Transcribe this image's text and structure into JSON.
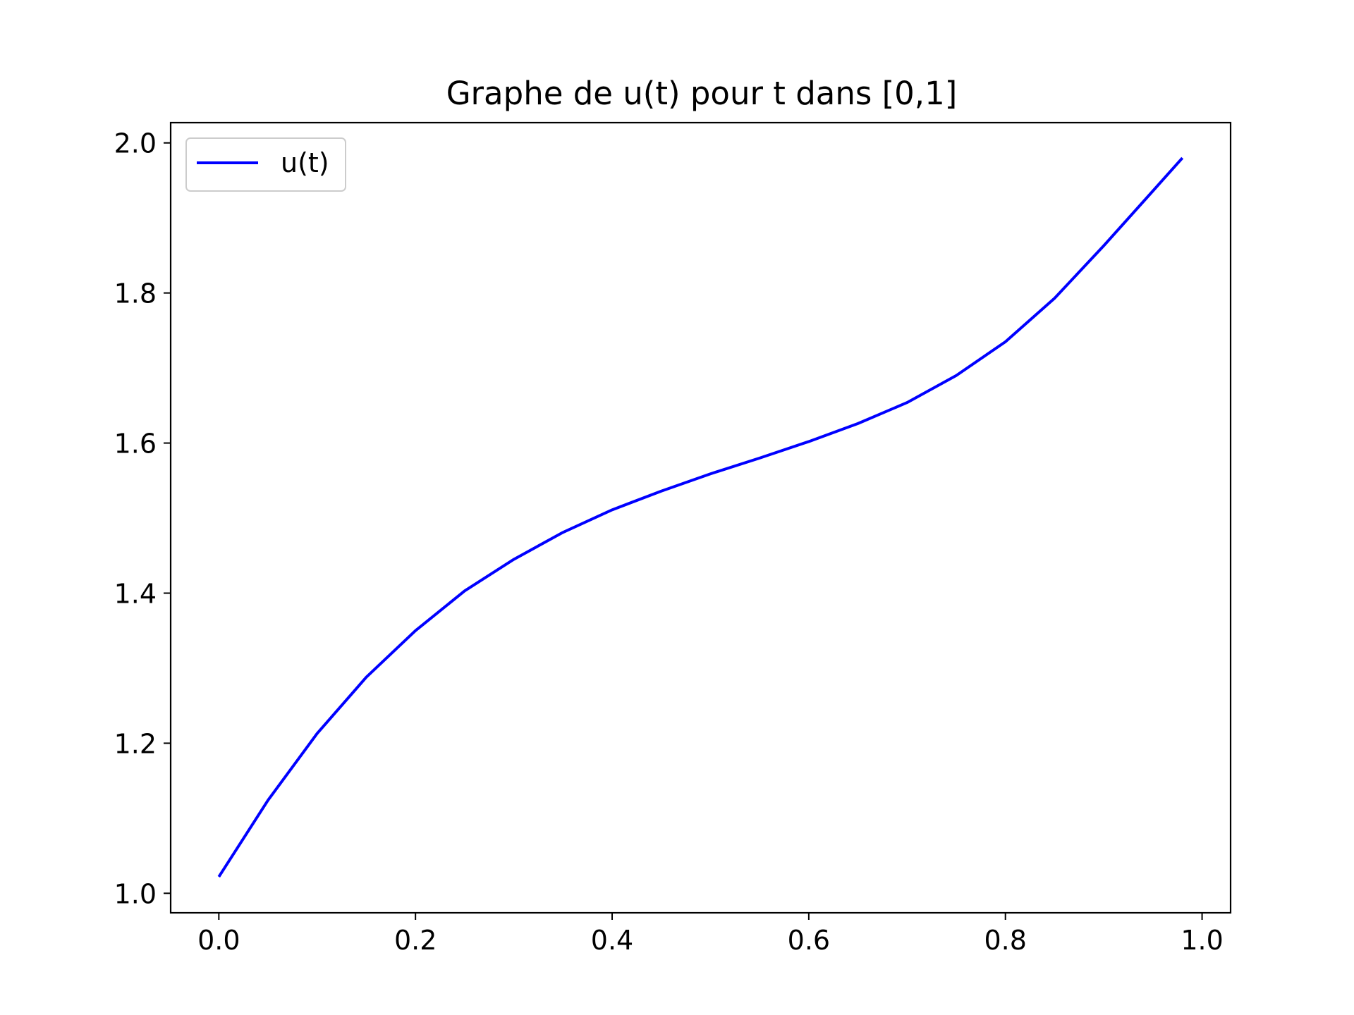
{
  "chart_data": {
    "type": "line",
    "title": "Graphe de u(t) pour t dans [0,1]",
    "xlabel": "",
    "ylabel": "",
    "xlim": [
      -0.049,
      1.029
    ],
    "ylim": [
      0.974,
      2.027
    ],
    "xticks": [
      0.0,
      0.2,
      0.4,
      0.6,
      0.8,
      1.0
    ],
    "xtick_labels": [
      "0.0",
      "0.2",
      "0.4",
      "0.6",
      "0.8",
      "1.0"
    ],
    "yticks": [
      1.0,
      1.2,
      1.4,
      1.6,
      1.8,
      2.0
    ],
    "ytick_labels": [
      "1.0",
      "1.2",
      "1.4",
      "1.6",
      "1.8",
      "2.0"
    ],
    "grid": false,
    "legend_position": "upper-left",
    "series": [
      {
        "name": "u(t)",
        "color": "#0000ff",
        "x": [
          0.0,
          0.05,
          0.1,
          0.15,
          0.2,
          0.25,
          0.3,
          0.35,
          0.4,
          0.45,
          0.5,
          0.55,
          0.6,
          0.65,
          0.7,
          0.75,
          0.8,
          0.85,
          0.9,
          0.95,
          0.98
        ],
        "y": [
          1.022,
          1.124,
          1.213,
          1.288,
          1.35,
          1.403,
          1.445,
          1.481,
          1.511,
          1.536,
          1.559,
          1.58,
          1.602,
          1.626,
          1.654,
          1.69,
          1.735,
          1.793,
          1.863,
          1.936,
          1.98
        ]
      }
    ]
  }
}
